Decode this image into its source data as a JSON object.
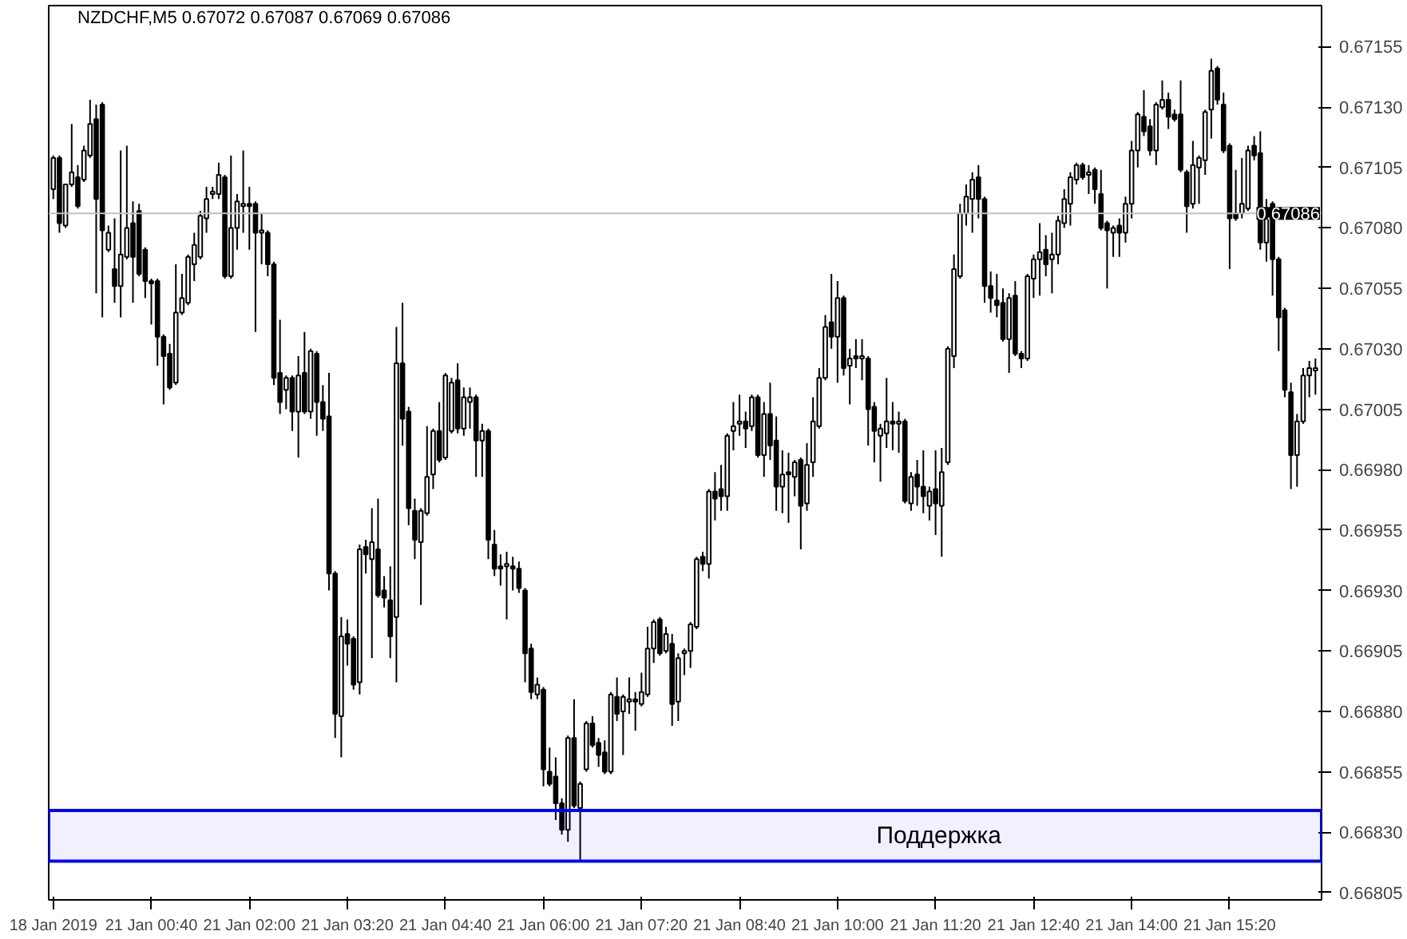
{
  "chart_data": {
    "type": "candlestick",
    "title": "NZDCHF,M5  0.67072 0.67087 0.67069 0.67086",
    "color": "#000000",
    "categories": [
      "18 Jan 2019",
      null,
      null,
      null,
      null,
      null,
      null,
      null,
      null,
      null,
      null,
      null,
      null,
      null,
      null,
      null,
      "21 Jan 00:40",
      null,
      null,
      null,
      null,
      null,
      null,
      null,
      null,
      null,
      null,
      null,
      null,
      null,
      null,
      null,
      "21 Jan 02:00",
      null,
      null,
      null,
      null,
      null,
      null,
      null,
      null,
      null,
      null,
      null,
      null,
      null,
      null,
      null,
      "21 Jan 03:20",
      null,
      null,
      null,
      null,
      null,
      null,
      null,
      null,
      null,
      null,
      null,
      null,
      null,
      null,
      null,
      "21 Jan 04:40",
      null,
      null,
      null,
      null,
      null,
      null,
      null,
      null,
      null,
      null,
      null,
      null,
      null,
      null,
      null,
      "21 Jan 06:00",
      null,
      null,
      null,
      null,
      null,
      null,
      null,
      null,
      null,
      null,
      null,
      null,
      null,
      null,
      null,
      "21 Jan 07:20",
      null,
      null,
      null,
      null,
      null,
      null,
      null,
      null,
      null,
      null,
      null,
      null,
      null,
      null,
      null,
      "21 Jan 08:40",
      null,
      null,
      null,
      null,
      null,
      null,
      null,
      null,
      null,
      null,
      null,
      null,
      null,
      null,
      null,
      "21 Jan 10:00",
      null,
      null,
      null,
      null,
      null,
      null,
      null,
      null,
      null,
      null,
      null,
      null,
      null,
      null,
      null,
      "21 Jan 11:20",
      null,
      null,
      null,
      null,
      null,
      null,
      null,
      null,
      null,
      null,
      null,
      null,
      null,
      null,
      null,
      "21 Jan 12:40",
      null,
      null,
      null,
      null,
      null,
      null,
      null,
      null,
      null,
      null,
      null,
      null,
      null,
      null,
      null,
      "21 Jan 14:00",
      null,
      null,
      null,
      null,
      null,
      null,
      null,
      null,
      null,
      null,
      null,
      null,
      null,
      null,
      null,
      "21 Jan 15:20",
      null,
      null,
      null,
      null,
      null,
      null,
      null,
      null,
      null,
      null,
      null,
      null,
      null,
      null
    ],
    "ohlc": [
      [
        0.67096,
        0.6711,
        0.67092,
        0.67109
      ],
      [
        0.67109,
        0.6711,
        0.67078,
        0.67082
      ],
      [
        0.67081,
        0.67098,
        0.6708,
        0.67098
      ],
      [
        0.67098,
        0.67123,
        0.67097,
        0.67103
      ],
      [
        0.67101,
        0.67106,
        0.67088,
        0.67089
      ],
      [
        0.671,
        0.67114,
        0.67099,
        0.67112
      ],
      [
        0.6711,
        0.67133,
        0.67109,
        0.67123
      ],
      [
        0.67125,
        0.67131,
        0.67053,
        0.67092
      ],
      [
        0.67131,
        0.67132,
        0.67043,
        0.67079
      ],
      [
        0.67071,
        0.67081,
        0.6707,
        0.67078
      ],
      [
        0.67063,
        0.67084,
        0.67049,
        0.67056
      ],
      [
        0.67056,
        0.67112,
        0.67043,
        0.67069
      ],
      [
        0.67068,
        0.67114,
        0.67067,
        0.6708
      ],
      [
        0.67082,
        0.67091,
        0.67049,
        0.67068
      ],
      [
        0.67087,
        0.6709,
        0.6706,
        0.67061
      ],
      [
        0.67071,
        0.67072,
        0.67051,
        0.67058
      ],
      [
        0.67058,
        0.67059,
        0.6704,
        0.67057
      ],
      [
        0.67058,
        0.67059,
        0.67023,
        0.67035
      ],
      [
        0.67035,
        0.67036,
        0.67007,
        0.67027
      ],
      [
        0.67028,
        0.67032,
        0.67013,
        0.67014
      ],
      [
        0.67016,
        0.67065,
        0.67015,
        0.67045
      ],
      [
        0.67045,
        0.67061,
        0.67044,
        0.67051
      ],
      [
        0.67049,
        0.67069,
        0.67048,
        0.67068
      ],
      [
        0.67065,
        0.67078,
        0.67058,
        0.67073
      ],
      [
        0.67068,
        0.67087,
        0.67067,
        0.67085
      ],
      [
        0.67084,
        0.67097,
        0.67078,
        0.67092
      ],
      [
        0.67094,
        0.67097,
        0.67092,
        0.67095
      ],
      [
        0.67094,
        0.67107,
        0.67092,
        0.67102
      ],
      [
        0.67101,
        0.67102,
        0.67059,
        0.6706
      ],
      [
        0.6706,
        0.6711,
        0.67059,
        0.6708
      ],
      [
        0.6708,
        0.67094,
        0.67071,
        0.67091
      ],
      [
        0.67089,
        0.67112,
        0.67078,
        0.6709
      ],
      [
        0.6709,
        0.67097,
        0.67071,
        0.67089
      ],
      [
        0.6709,
        0.67091,
        0.67037,
        0.67078
      ],
      [
        0.67078,
        0.67086,
        0.67065,
        0.67079
      ],
      [
        0.67078,
        0.67079,
        0.6706,
        0.67065
      ],
      [
        0.67065,
        0.67066,
        0.67015,
        0.67018
      ],
      [
        0.6702,
        0.67042,
        0.67003,
        0.67008
      ],
      [
        0.67013,
        0.67019,
        0.67005,
        0.67018
      ],
      [
        0.67018,
        0.67019,
        0.66996,
        0.67004
      ],
      [
        0.67004,
        0.67027,
        0.66985,
        0.67019
      ],
      [
        0.6702,
        0.67037,
        0.67003,
        0.67004
      ],
      [
        0.67004,
        0.6703,
        0.67001,
        0.67029
      ],
      [
        0.67028,
        0.67029,
        0.66994,
        0.67008
      ],
      [
        0.67008,
        0.67015,
        0.66996,
        0.67001
      ],
      [
        0.67002,
        0.6702,
        0.6693,
        0.66937
      ],
      [
        0.66937,
        0.66938,
        0.66869,
        0.66879
      ],
      [
        0.66878,
        0.66919,
        0.66861,
        0.66911
      ],
      [
        0.66912,
        0.66918,
        0.66899,
        0.66908
      ],
      [
        0.6691,
        0.66911,
        0.66889,
        0.66891
      ],
      [
        0.66892,
        0.66949,
        0.66887,
        0.66947
      ],
      [
        0.66948,
        0.66951,
        0.66937,
        0.66945
      ],
      [
        0.66943,
        0.66964,
        0.66902,
        0.6695
      ],
      [
        0.66947,
        0.66968,
        0.66927,
        0.66928
      ],
      [
        0.6693,
        0.66936,
        0.66923,
        0.66927
      ],
      [
        0.66926,
        0.6694,
        0.66902,
        0.66911
      ],
      [
        0.66919,
        0.67039,
        0.66892,
        0.67024
      ],
      [
        0.67024,
        0.67049,
        0.6699,
        0.67001
      ],
      [
        0.67004,
        0.67006,
        0.66957,
        0.66964
      ],
      [
        0.66963,
        0.66968,
        0.66943,
        0.66951
      ],
      [
        0.6695,
        0.66964,
        0.66924,
        0.66963
      ],
      [
        0.66962,
        0.66998,
        0.66961,
        0.66977
      ],
      [
        0.66978,
        0.66997,
        0.66972,
        0.66996
      ],
      [
        0.66996,
        0.67008,
        0.66983,
        0.66984
      ],
      [
        0.66985,
        0.6702,
        0.66984,
        0.67019
      ],
      [
        0.66996,
        0.67018,
        0.66995,
        0.67016
      ],
      [
        0.67017,
        0.67024,
        0.66995,
        0.66997
      ],
      [
        0.66997,
        0.67014,
        0.66994,
        0.6701
      ],
      [
        0.67008,
        0.67014,
        0.66997,
        0.6701
      ],
      [
        0.6701,
        0.67011,
        0.66977,
        0.66992
      ],
      [
        0.66992,
        0.66999,
        0.66977,
        0.66996
      ],
      [
        0.66996,
        0.66997,
        0.66943,
        0.66951
      ],
      [
        0.66949,
        0.66955,
        0.66936,
        0.66939
      ],
      [
        0.6694,
        0.66945,
        0.66932,
        0.66939
      ],
      [
        0.6694,
        0.66946,
        0.66918,
        0.66941
      ],
      [
        0.6694,
        0.66944,
        0.6693,
        0.66939
      ],
      [
        0.66939,
        0.66942,
        0.66929,
        0.66931
      ],
      [
        0.6693,
        0.66931,
        0.66892,
        0.66904
      ],
      [
        0.66906,
        0.66908,
        0.66885,
        0.66888
      ],
      [
        0.66887,
        0.66894,
        0.66885,
        0.66891
      ],
      [
        0.66889,
        0.6689,
        0.66849,
        0.66856
      ],
      [
        0.66855,
        0.66865,
        0.66849,
        0.6685
      ],
      [
        0.66853,
        0.66861,
        0.66835,
        0.66842
      ],
      [
        0.66842,
        0.66844,
        0.66829,
        0.66831
      ],
      [
        0.66831,
        0.6687,
        0.66826,
        0.66869
      ],
      [
        0.66869,
        0.66885,
        0.6684,
        0.66841
      ],
      [
        0.6684,
        0.66851,
        0.66818,
        0.6685
      ],
      [
        0.66856,
        0.66876,
        0.66855,
        0.66875
      ],
      [
        0.66875,
        0.66878,
        0.66865,
        0.66866
      ],
      [
        0.66867,
        0.66869,
        0.66857,
        0.66862
      ],
      [
        0.66863,
        0.66868,
        0.66854,
        0.66855
      ],
      [
        0.66855,
        0.66888,
        0.66854,
        0.66887
      ],
      [
        0.66886,
        0.66894,
        0.66876,
        0.66879
      ],
      [
        0.6688,
        0.66887,
        0.66862,
        0.66886
      ],
      [
        0.66884,
        0.66894,
        0.66879,
        0.66885
      ],
      [
        0.66885,
        0.66888,
        0.66872,
        0.66884
      ],
      [
        0.66883,
        0.66896,
        0.66882,
        0.66888
      ],
      [
        0.66887,
        0.66915,
        0.66886,
        0.66906
      ],
      [
        0.66906,
        0.66918,
        0.669,
        0.66917
      ],
      [
        0.66918,
        0.66919,
        0.66903,
        0.66904
      ],
      [
        0.66905,
        0.66915,
        0.66904,
        0.66912
      ],
      [
        0.66908,
        0.66912,
        0.66874,
        0.66883
      ],
      [
        0.66884,
        0.66904,
        0.66876,
        0.66902
      ],
      [
        0.66904,
        0.66906,
        0.66895,
        0.66905
      ],
      [
        0.66905,
        0.66917,
        0.66898,
        0.66916
      ],
      [
        0.66915,
        0.66944,
        0.66914,
        0.66943
      ],
      [
        0.66944,
        0.66946,
        0.66938,
        0.66941
      ],
      [
        0.66941,
        0.66972,
        0.66935,
        0.66971
      ],
      [
        0.66971,
        0.66979,
        0.66959,
        0.66968
      ],
      [
        0.66972,
        0.66982,
        0.66963,
        0.66969
      ],
      [
        0.66969,
        0.66995,
        0.66963,
        0.66994
      ],
      [
        0.66996,
        0.67008,
        0.66988,
        0.66998
      ],
      [
        0.66999,
        0.67011,
        0.66994,
        0.67
      ],
      [
        0.67,
        0.67004,
        0.66989,
        0.66997
      ],
      [
        0.66998,
        0.67011,
        0.66996,
        0.6701
      ],
      [
        0.6701,
        0.67011,
        0.66985,
        0.66986
      ],
      [
        0.66986,
        0.67008,
        0.66977,
        0.67003
      ],
      [
        0.67003,
        0.67016,
        0.66984,
        0.6699
      ],
      [
        0.66992,
        0.67002,
        0.66963,
        0.66973
      ],
      [
        0.66973,
        0.66988,
        0.66962,
        0.66978
      ],
      [
        0.66979,
        0.66987,
        0.66958,
        0.66978
      ],
      [
        0.66977,
        0.66984,
        0.66969,
        0.66983
      ],
      [
        0.66984,
        0.66985,
        0.66947,
        0.66965
      ],
      [
        0.66966,
        0.66991,
        0.66963,
        0.66982
      ],
      [
        0.66983,
        0.6701,
        0.66977,
        0.67
      ],
      [
        0.66998,
        0.67022,
        0.66997,
        0.67018
      ],
      [
        0.67018,
        0.67044,
        0.67017,
        0.67039
      ],
      [
        0.67041,
        0.67061,
        0.6703,
        0.67035
      ],
      [
        0.67035,
        0.67058,
        0.67016,
        0.67051
      ],
      [
        0.67051,
        0.67052,
        0.67019,
        0.67022
      ],
      [
        0.67023,
        0.6703,
        0.67007,
        0.67026
      ],
      [
        0.67027,
        0.67034,
        0.67022,
        0.67026
      ],
      [
        0.67026,
        0.67034,
        0.67017,
        0.67027
      ],
      [
        0.67026,
        0.67027,
        0.6699,
        0.67005
      ],
      [
        0.67006,
        0.67008,
        0.66983,
        0.66996
      ],
      [
        0.66994,
        0.66999,
        0.66975,
        0.66997
      ],
      [
        0.66995,
        0.67018,
        0.66989,
        0.67
      ],
      [
        0.67,
        0.67008,
        0.66988,
        0.66999
      ],
      [
        0.66999,
        0.67004,
        0.66987,
        0.67
      ],
      [
        0.67,
        0.67001,
        0.66966,
        0.66967
      ],
      [
        0.66966,
        0.66979,
        0.66963,
        0.66977
      ],
      [
        0.66978,
        0.66984,
        0.66965,
        0.66973
      ],
      [
        0.66973,
        0.66988,
        0.66962,
        0.66969
      ],
      [
        0.66965,
        0.66973,
        0.66959,
        0.66971
      ],
      [
        0.66972,
        0.66988,
        0.66953,
        0.66966
      ],
      [
        0.66965,
        0.66989,
        0.66944,
        0.66979
      ],
      [
        0.66983,
        0.67031,
        0.66982,
        0.6703
      ],
      [
        0.67027,
        0.67069,
        0.67022,
        0.67063
      ],
      [
        0.6706,
        0.6709,
        0.67059,
        0.67086
      ],
      [
        0.67086,
        0.67098,
        0.67081,
        0.67093
      ],
      [
        0.67092,
        0.67103,
        0.67078,
        0.671
      ],
      [
        0.67101,
        0.67106,
        0.67084,
        0.67092
      ],
      [
        0.67092,
        0.67093,
        0.67049,
        0.67056
      ],
      [
        0.67056,
        0.67062,
        0.67045,
        0.67051
      ],
      [
        0.6705,
        0.67061,
        0.67043,
        0.67048
      ],
      [
        0.67049,
        0.67055,
        0.67033,
        0.67034
      ],
      [
        0.67034,
        0.67053,
        0.6702,
        0.67051
      ],
      [
        0.67052,
        0.67058,
        0.67027,
        0.67028
      ],
      [
        0.67028,
        0.67029,
        0.67022,
        0.67026
      ],
      [
        0.67026,
        0.67061,
        0.67025,
        0.6706
      ],
      [
        0.67059,
        0.67069,
        0.67051,
        0.67067
      ],
      [
        0.67067,
        0.67082,
        0.67052,
        0.6707
      ],
      [
        0.67071,
        0.67077,
        0.6706,
        0.67065
      ],
      [
        0.67067,
        0.67078,
        0.67053,
        0.67069
      ],
      [
        0.67069,
        0.67085,
        0.67065,
        0.67083
      ],
      [
        0.67082,
        0.67096,
        0.6708,
        0.67092
      ],
      [
        0.6709,
        0.67103,
        0.67081,
        0.67101
      ],
      [
        0.671,
        0.67107,
        0.67098,
        0.67106
      ],
      [
        0.67106,
        0.67107,
        0.671,
        0.67101
      ],
      [
        0.67102,
        0.67106,
        0.67094,
        0.67103
      ],
      [
        0.67104,
        0.67105,
        0.6709,
        0.67096
      ],
      [
        0.67094,
        0.67104,
        0.67079,
        0.6708
      ],
      [
        0.67082,
        0.67083,
        0.67055,
        0.67079
      ],
      [
        0.67078,
        0.67081,
        0.67068,
        0.6708
      ],
      [
        0.67081,
        0.67084,
        0.67068,
        0.67078
      ],
      [
        0.67078,
        0.67093,
        0.67074,
        0.6709
      ],
      [
        0.6709,
        0.67116,
        0.67084,
        0.67112
      ],
      [
        0.67112,
        0.67128,
        0.67105,
        0.67127
      ],
      [
        0.67126,
        0.67137,
        0.67118,
        0.6712
      ],
      [
        0.67122,
        0.67125,
        0.6711,
        0.67112
      ],
      [
        0.67112,
        0.67132,
        0.67106,
        0.67131
      ],
      [
        0.6713,
        0.67141,
        0.67129,
        0.67133
      ],
      [
        0.67133,
        0.67136,
        0.67121,
        0.67126
      ],
      [
        0.67127,
        0.67129,
        0.67124,
        0.67125
      ],
      [
        0.67127,
        0.67141,
        0.67103,
        0.67104
      ],
      [
        0.67103,
        0.67104,
        0.67078,
        0.67089
      ],
      [
        0.6709,
        0.67116,
        0.67088,
        0.67106
      ],
      [
        0.67105,
        0.6711,
        0.6709,
        0.67109
      ],
      [
        0.67108,
        0.67129,
        0.67102,
        0.67128
      ],
      [
        0.67129,
        0.6715,
        0.67117,
        0.67145
      ],
      [
        0.67146,
        0.67147,
        0.67131,
        0.67133
      ],
      [
        0.67131,
        0.67136,
        0.67111,
        0.67112
      ],
      [
        0.67114,
        0.67115,
        0.67063,
        0.67084
      ],
      [
        0.67086,
        0.67104,
        0.67083,
        0.67084
      ],
      [
        0.67086,
        0.67109,
        0.67084,
        0.6709
      ],
      [
        0.67088,
        0.67114,
        0.67087,
        0.67112
      ],
      [
        0.67114,
        0.67118,
        0.67108,
        0.6711
      ],
      [
        0.67111,
        0.6712,
        0.67071,
        0.67074
      ],
      [
        0.67074,
        0.67092,
        0.67066,
        0.67088
      ],
      [
        0.6709,
        0.67091,
        0.67052,
        0.67067
      ],
      [
        0.67067,
        0.67068,
        0.67029,
        0.67043
      ],
      [
        0.67046,
        0.67047,
        0.6701,
        0.67013
      ],
      [
        0.67012,
        0.67016,
        0.66972,
        0.66986
      ],
      [
        0.66986,
        0.67003,
        0.66973,
        0.67
      ],
      [
        0.67,
        0.67022,
        0.66999,
        0.67019
      ],
      [
        0.67019,
        0.67025,
        0.6701,
        0.67022
      ],
      [
        0.67021,
        0.67026,
        0.67011,
        0.67022
      ]
    ],
    "ylim": [
      0.66802,
      0.67172
    ],
    "yticks": [
      0.67155,
      {
        "value": 0.6713,
        "label": "0.67130"
      },
      0.67105,
      {
        "value": 0.6708,
        "label": "0.67080"
      },
      0.67055,
      {
        "value": 0.6703,
        "label": "0.67030"
      },
      0.67005,
      {
        "value": 0.6698,
        "label": "0.66980"
      },
      0.66955,
      {
        "value": 0.6693,
        "label": "0.66930"
      },
      0.66905,
      {
        "value": 0.6688,
        "label": "0.66880"
      },
      0.66855,
      {
        "value": 0.6683,
        "label": "0.66830"
      },
      0.66805
    ],
    "ref_lines": [
      {
        "axis": "y",
        "value": 0.67086,
        "label": "0.67086",
        "color": "#c0c0c0"
      }
    ],
    "bands": [
      {
        "axis": "y",
        "from": 0.66818,
        "to": 0.66839,
        "label": "Поддержка",
        "color": "#0000ff"
      }
    ]
  }
}
